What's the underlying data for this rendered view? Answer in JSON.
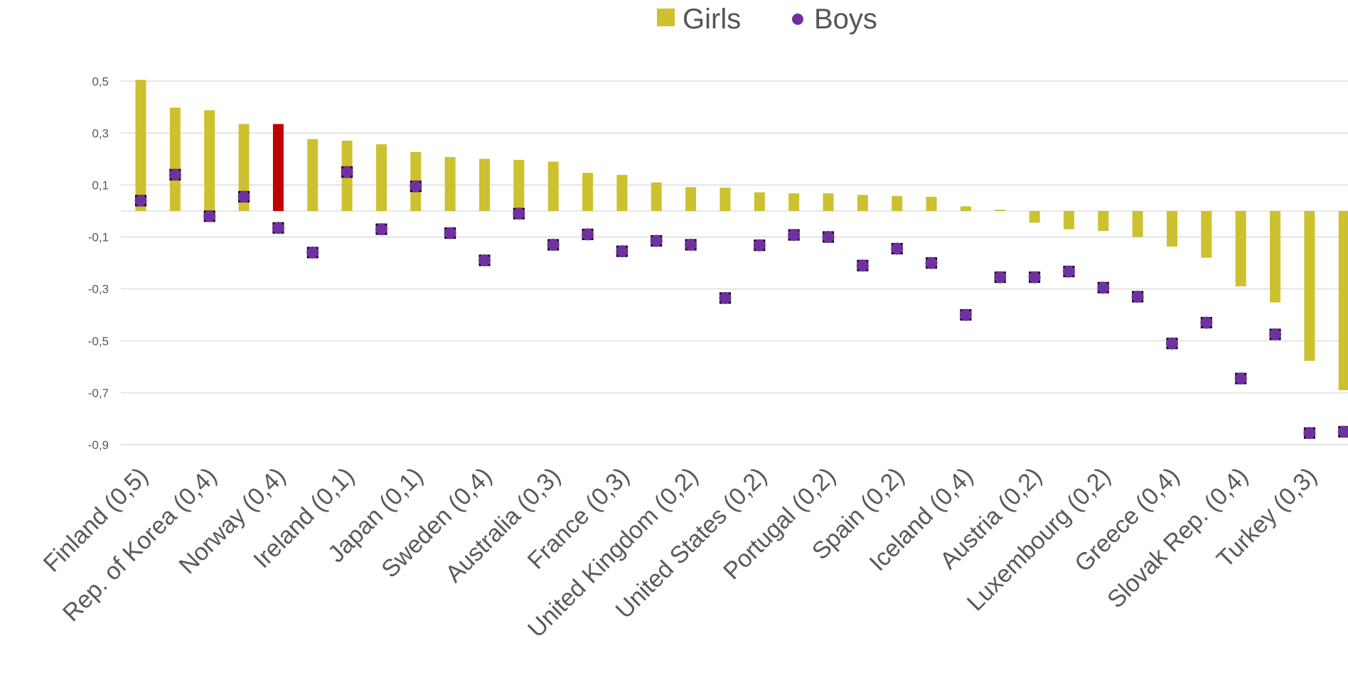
{
  "chart_data": {
    "type": "bar",
    "legend": {
      "position": "top-center",
      "items": [
        {
          "name": "Girls",
          "marker": "square",
          "color": "#CDC12F"
        },
        {
          "name": "Boys",
          "marker": "circle",
          "color": "#7030A0"
        }
      ]
    },
    "y_axis": {
      "ylim": [
        -1.0,
        0.6
      ],
      "ticks": [
        0.5,
        0.3,
        0.1,
        -0.1,
        -0.3,
        -0.5,
        -0.7,
        -0.9
      ],
      "tick_labels": [
        "0,5",
        "0,3",
        "0,1",
        "-0,1",
        "-0,3",
        "-0,5",
        "-0,7",
        "-0,9"
      ],
      "gridlines": true
    },
    "x_tick_labels": [
      "Finland (0,5)",
      "Rep. of Korea (0,4)",
      "Norway (0,4)",
      "Ireland (0,1)",
      "Japan (0,1)",
      "Sweden (0,4)",
      "Australia (0,3)",
      "France (0,3)",
      "United Kingdom (0,2)",
      "United States (0,2)",
      "Portugal (0,2)",
      "Spain (0,2)",
      "Iceland (0,4)",
      "Austria (0,2)",
      "Luxembourg (0,2)",
      "Greece (0,4)",
      "Slovak Rep. (0,4)",
      "Turkey (0,3)"
    ],
    "series": [
      {
        "name": "Girls",
        "type": "bar",
        "color": "#CDC12F",
        "highlight_color": "#C00000",
        "highlight_index": 4,
        "values": [
          0.505,
          0.398,
          0.388,
          0.335,
          0.335,
          0.277,
          0.271,
          0.257,
          0.227,
          0.208,
          0.201,
          0.197,
          0.19,
          0.147,
          0.139,
          0.11,
          0.092,
          0.09,
          0.072,
          0.068,
          0.068,
          0.062,
          0.058,
          0.055,
          0.018,
          0.005,
          -0.045,
          -0.07,
          -0.077,
          -0.1,
          -0.137,
          -0.18,
          -0.29,
          -0.352,
          -0.577,
          -0.69
        ]
      },
      {
        "name": "Boys",
        "type": "scatter",
        "color": "#7030A0",
        "values": [
          0.04,
          0.14,
          -0.02,
          0.055,
          -0.065,
          -0.16,
          0.15,
          -0.07,
          0.095,
          -0.085,
          -0.19,
          -0.01,
          -0.13,
          -0.09,
          -0.155,
          -0.115,
          -0.13,
          -0.335,
          -0.132,
          -0.092,
          -0.1,
          -0.21,
          -0.145,
          -0.2,
          -0.4,
          -0.255,
          -0.255,
          -0.233,
          -0.295,
          -0.33,
          -0.51,
          -0.43,
          -0.645,
          -0.475,
          -0.855,
          -0.85
        ]
      }
    ]
  }
}
